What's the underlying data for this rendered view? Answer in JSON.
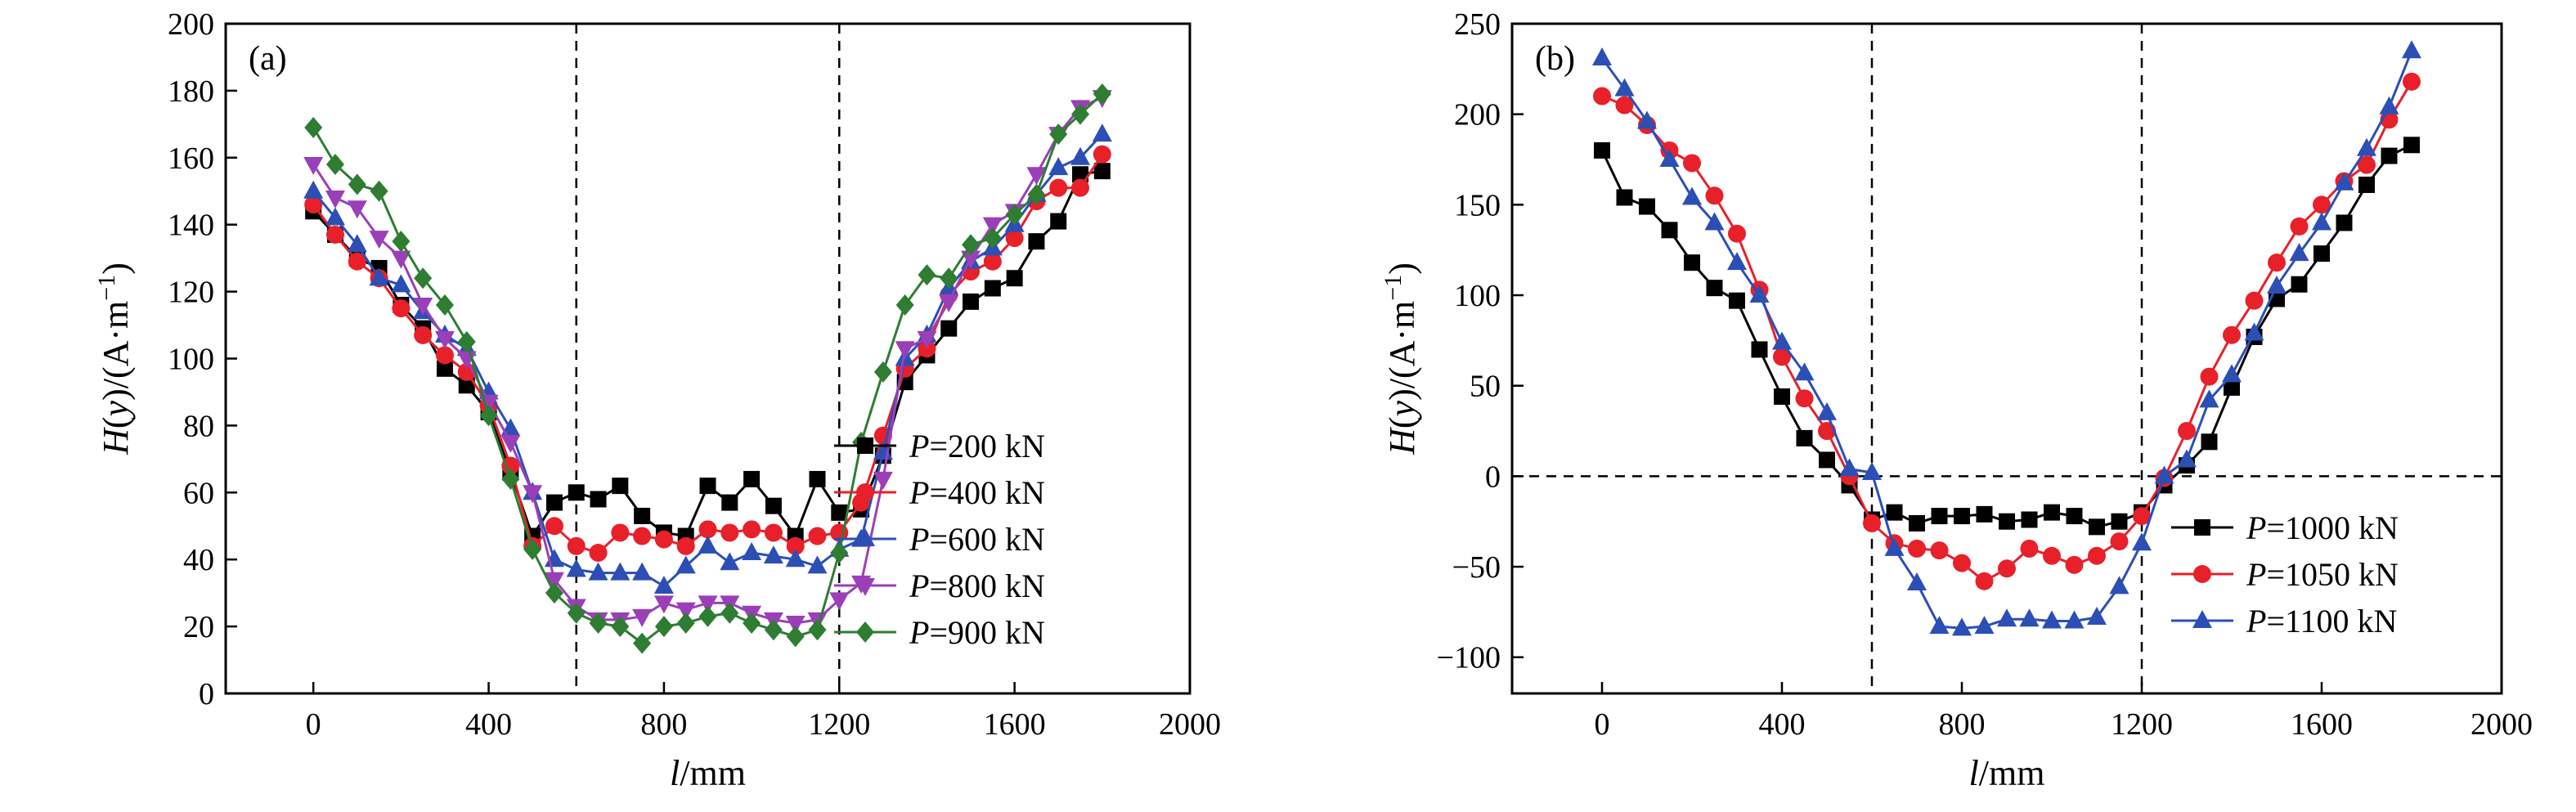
{
  "chart_data": [
    {
      "type": "line",
      "panel_label": "(a)",
      "xlabel": {
        "italic": "l",
        "rest": "/mm"
      },
      "ylabel": {
        "parts": [
          [
            "H",
            true
          ],
          [
            "(",
            false
          ],
          [
            "y",
            true
          ],
          [
            ")/(A·m",
            false
          ]
        ],
        "sup": "−1",
        "close": ")"
      },
      "xlim": [
        -200,
        2000
      ],
      "ylim": [
        0,
        200
      ],
      "xticks": [
        0,
        400,
        800,
        1200,
        1600,
        2000
      ],
      "yticks": [
        0,
        20,
        40,
        60,
        80,
        100,
        120,
        140,
        160,
        180,
        200
      ],
      "vlines": [
        600,
        1200
      ],
      "hlines": [],
      "legend_position": "lower-right",
      "x": [
        0,
        50,
        100,
        150,
        200,
        250,
        300,
        350,
        400,
        450,
        500,
        550,
        600,
        650,
        700,
        750,
        800,
        850,
        900,
        950,
        1000,
        1050,
        1100,
        1150,
        1200,
        1250,
        1300,
        1350,
        1400,
        1450,
        1500,
        1550,
        1600,
        1650,
        1700,
        1750,
        1800
      ],
      "series": [
        {
          "name": "P=200 kN",
          "name_italic": "P",
          "name_rest": "=200 kN",
          "color": "#000000",
          "marker": "square",
          "values": [
            144,
            137,
            130,
            127,
            116,
            109,
            97,
            92,
            84,
            66,
            47,
            57,
            60,
            58,
            62,
            53,
            48,
            47,
            62,
            57,
            64,
            56,
            47,
            64,
            54,
            55,
            71,
            93,
            101,
            109,
            117,
            121,
            124,
            135,
            141,
            155,
            156
          ]
        },
        {
          "name": "P=400 kN",
          "name_italic": "P",
          "name_rest": "=400 kN",
          "color": "#e8202a",
          "marker": "circle",
          "values": [
            146,
            137,
            129,
            124,
            115,
            107,
            101,
            96,
            86,
            68,
            44,
            50,
            44,
            42,
            48,
            47,
            46,
            44,
            49,
            48,
            49,
            48,
            44,
            47,
            48,
            57,
            77,
            97,
            103,
            119,
            126,
            129,
            136,
            147,
            151,
            151,
            161
          ]
        },
        {
          "name": "P=600 kN",
          "name_italic": "P",
          "name_rest": "=600 kN",
          "color": "#2b4fb5",
          "marker": "triangle-up",
          "values": [
            150,
            142,
            134,
            124,
            122,
            114,
            107,
            103,
            90,
            79,
            60,
            40,
            37,
            36,
            36,
            36,
            32,
            38,
            44,
            39,
            42,
            41,
            40,
            38,
            43,
            46,
            72,
            100,
            107,
            121,
            129,
            133,
            140,
            149,
            157,
            160,
            167
          ]
        },
        {
          "name": "P=800 kN",
          "name_italic": "P",
          "name_rest": "=800 kN",
          "color": "#9b3fb8",
          "marker": "triangle-down",
          "values": [
            158,
            148,
            145,
            136,
            130,
            116,
            106,
            100,
            87,
            75,
            60,
            34,
            26,
            22,
            22,
            23,
            27,
            25,
            27,
            27,
            24,
            22,
            21,
            22,
            28,
            33,
            64,
            103,
            106,
            117,
            130,
            140,
            144,
            155,
            167,
            175,
            178
          ]
        },
        {
          "name": "P=900 kN",
          "name_italic": "P",
          "name_rest": "=900 kN",
          "color": "#2e7d32",
          "marker": "diamond",
          "values": [
            169,
            158,
            152,
            150,
            135,
            124,
            116,
            105,
            83,
            64,
            43,
            30,
            24,
            21,
            20,
            15,
            20,
            21,
            23,
            24,
            21,
            19,
            17,
            19,
            42,
            75,
            96,
            116,
            125,
            124,
            134,
            136,
            143,
            149,
            167,
            173,
            179
          ]
        }
      ]
    },
    {
      "type": "line",
      "panel_label": "(b)",
      "xlabel": {
        "italic": "l",
        "rest": "/mm"
      },
      "ylabel": {
        "parts": [
          [
            "H",
            true
          ],
          [
            "(",
            false
          ],
          [
            "y",
            true
          ],
          [
            ")/(A·m",
            false
          ]
        ],
        "sup": "−1",
        "close": ")"
      },
      "xlim": [
        -200,
        2000
      ],
      "ylim": [
        -120,
        250
      ],
      "xticks": [
        0,
        400,
        800,
        1200,
        1600,
        2000
      ],
      "yticks": [
        -100,
        -50,
        0,
        50,
        100,
        150,
        200,
        250
      ],
      "vlines": [
        600,
        1200
      ],
      "hlines": [
        0
      ],
      "legend_position": "lower-right",
      "x": [
        0,
        50,
        100,
        150,
        200,
        250,
        300,
        350,
        400,
        450,
        500,
        550,
        600,
        650,
        700,
        750,
        800,
        850,
        900,
        950,
        1000,
        1050,
        1100,
        1150,
        1200,
        1250,
        1300,
        1350,
        1400,
        1450,
        1500,
        1550,
        1600,
        1650,
        1700,
        1750,
        1800
      ],
      "series": [
        {
          "name": "P=1000 kN",
          "name_italic": "P",
          "name_rest": "=1000 kN",
          "color": "#000000",
          "marker": "square",
          "values": [
            180,
            154,
            149,
            136,
            118,
            104,
            97,
            70,
            44,
            21,
            9,
            -5,
            -24,
            -20,
            -26,
            -22,
            -22,
            -21,
            -25,
            -24,
            -20,
            -22,
            -28,
            -25,
            -20,
            -5,
            6,
            19,
            49,
            77,
            98,
            106,
            123,
            140,
            161,
            177,
            183
          ]
        },
        {
          "name": "P=1050 kN",
          "name_italic": "P",
          "name_rest": "=1050 kN",
          "color": "#e8202a",
          "marker": "circle",
          "values": [
            210,
            205,
            194,
            180,
            173,
            155,
            134,
            103,
            66,
            43,
            25,
            0,
            -26,
            -37,
            -40,
            -41,
            -48,
            -58,
            -51,
            -40,
            -44,
            -49,
            -44,
            -36,
            -22,
            -1,
            25,
            55,
            78,
            97,
            118,
            138,
            150,
            163,
            172,
            197,
            218
          ]
        },
        {
          "name": "P=1100 kN",
          "name_italic": "P",
          "name_rest": "=1100 kN",
          "color": "#2b4fb5",
          "marker": "triangle-up",
          "values": [
            231,
            214,
            196,
            175,
            154,
            140,
            118,
            100,
            74,
            57,
            35,
            4,
            2,
            -40,
            -59,
            -83,
            -84,
            -83,
            -79,
            -79,
            -80,
            -80,
            -78,
            -61,
            -37,
            0,
            9,
            42,
            56,
            79,
            105,
            123,
            140,
            162,
            181,
            204,
            235
          ]
        }
      ]
    }
  ]
}
